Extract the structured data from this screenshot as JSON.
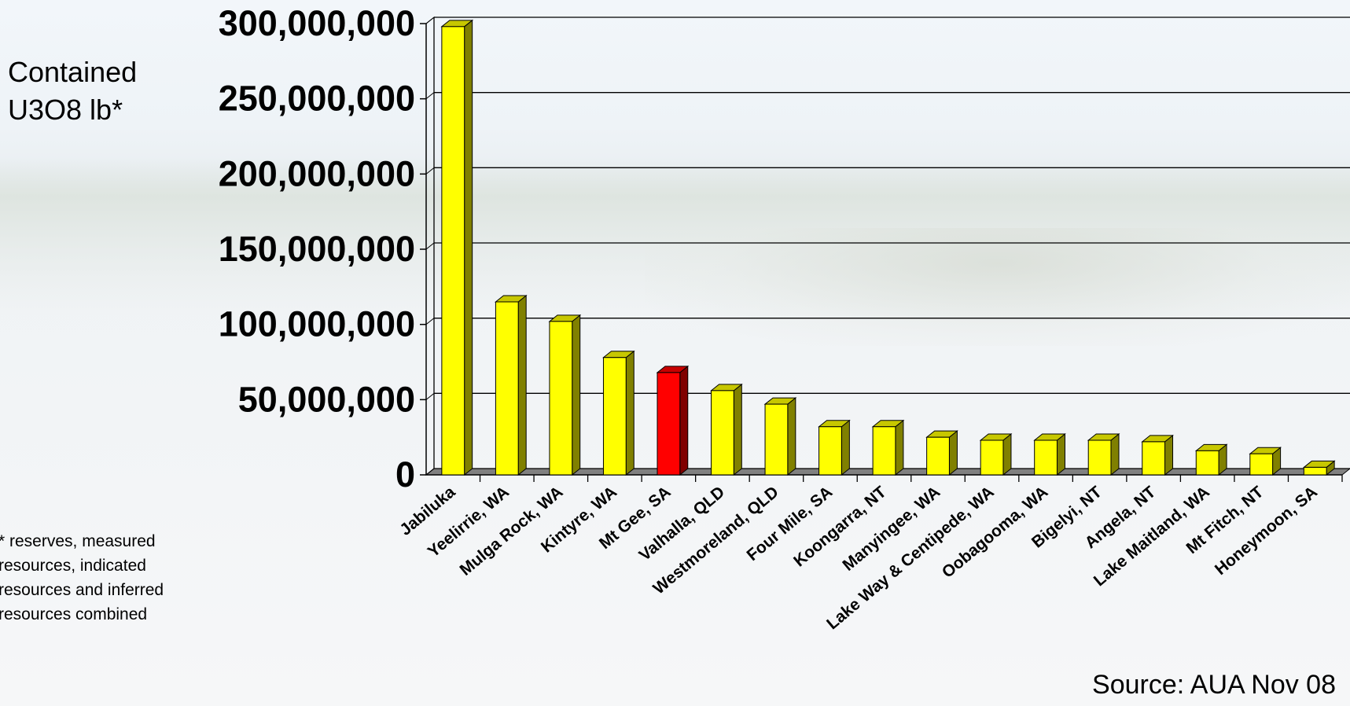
{
  "ylabel_lines": [
    "Contained",
    "U3O8 lb*"
  ],
  "footnote": "* reserves, measured resources, indicated resources and inferred resources combined",
  "source": "Source: AUA Nov 08",
  "chart_data": {
    "type": "bar",
    "title": "",
    "xlabel": "",
    "ylabel": "Contained U3O8 lb*",
    "ylim": [
      0,
      300000000
    ],
    "yticks": [
      0,
      50000000,
      100000000,
      150000000,
      200000000,
      250000000,
      300000000
    ],
    "ytick_labels": [
      "0",
      "50,000,000",
      "100,000,000",
      "150,000,000",
      "200,000,000",
      "250,000,000",
      "300,000,000"
    ],
    "grid": true,
    "categories": [
      "Jabiluka",
      "Yeelirrie, WA",
      "Mulga Rock, WA",
      "Kintyre, WA",
      "Mt Gee, SA",
      "Valhalla, QLD",
      "Westmoreland, QLD",
      "Four Mile, SA",
      "Koongarra, NT",
      "Manyingee, WA",
      "Lake Way & Centipede, WA",
      "Oobagooma, WA",
      "Bigelyi, NT",
      "Angela, NT",
      "Lake Maitland, WA",
      "Mt Fitch, NT",
      "Honeymoon, SA"
    ],
    "values": [
      298000000,
      115000000,
      102000000,
      78000000,
      68000000,
      56000000,
      47000000,
      32000000,
      32000000,
      25000000,
      23000000,
      23000000,
      23000000,
      22000000,
      16000000,
      14000000,
      5000000
    ],
    "bar_colors": [
      "#ffff00",
      "#ffff00",
      "#ffff00",
      "#ffff00",
      "#ff0000",
      "#ffff00",
      "#ffff00",
      "#ffff00",
      "#ffff00",
      "#ffff00",
      "#ffff00",
      "#ffff00",
      "#ffff00",
      "#ffff00",
      "#ffff00",
      "#ffff00",
      "#ffff00"
    ],
    "colors": {
      "bar": "#ffff00",
      "highlight": "#ff0000",
      "grid": "#000000",
      "floor": "#808080"
    }
  }
}
